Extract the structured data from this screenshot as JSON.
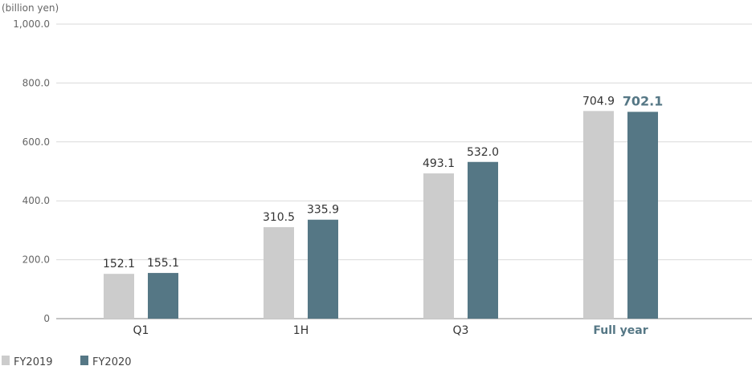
{
  "chart_data": {
    "type": "bar",
    "unit_label": "(billion yen)",
    "categories": [
      "Q1",
      "1H",
      "Q3",
      "Full year"
    ],
    "highlight_category": "Full year",
    "series": [
      {
        "name": "FY2019",
        "color": "#cccccc",
        "values": [
          152.1,
          310.5,
          493.1,
          704.9
        ],
        "labels": [
          "152.1",
          "310.5",
          "493.1",
          "704.9"
        ]
      },
      {
        "name": "FY2020",
        "color": "#557785",
        "values": [
          155.1,
          335.9,
          532.0,
          702.1
        ],
        "labels": [
          "155.1",
          "335.9",
          "532.0",
          "702.1"
        ]
      }
    ],
    "ylim": [
      0,
      1000
    ],
    "yticks": [
      0,
      200,
      400,
      600,
      800,
      1000
    ],
    "ytick_labels": [
      "0",
      "200.0",
      "400.0",
      "600.0",
      "800.0",
      "1,000.0"
    ],
    "grid": true,
    "legend_position": "bottom-left"
  }
}
